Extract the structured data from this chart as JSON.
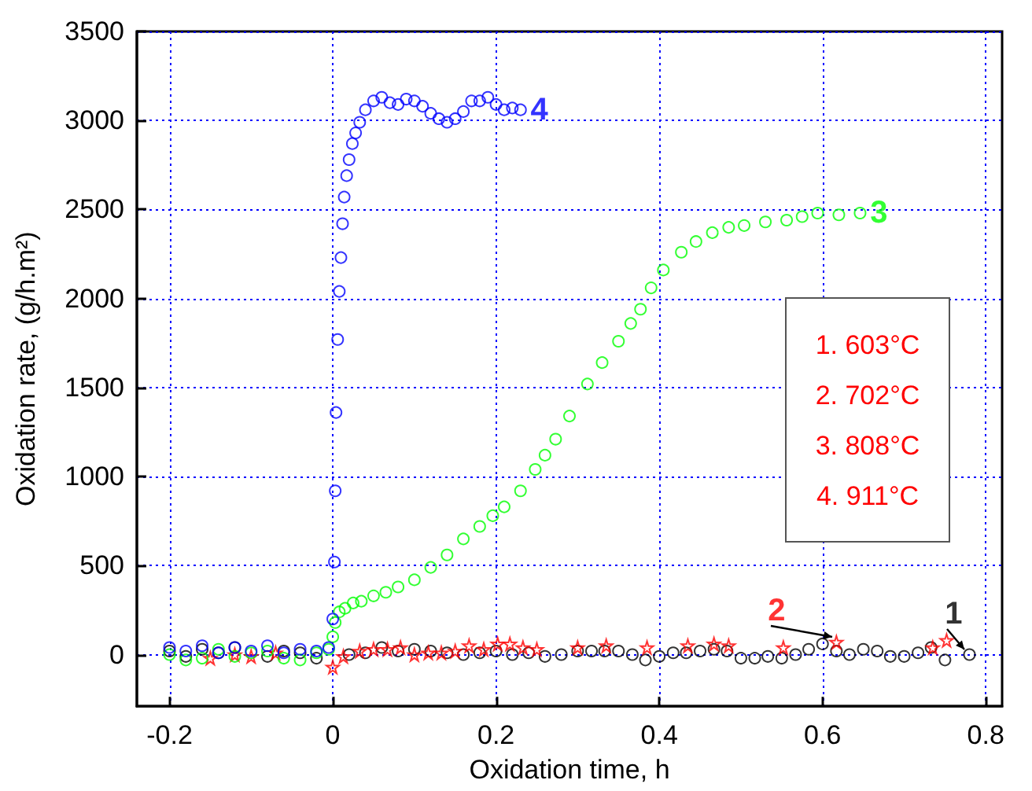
{
  "chart_data": {
    "type": "scatter",
    "xlabel": "Oxidation time, h",
    "ylabel": "Oxidation rate, (g/h.m²)",
    "xlim": [
      -0.24,
      0.82
    ],
    "xticks": [
      -0.2,
      0,
      0.2,
      0.4,
      0.6,
      0.8
    ],
    "ylim": [
      -290,
      3500
    ],
    "yticks": [
      0,
      500,
      1000,
      1500,
      2000,
      2500,
      3000,
      3500
    ],
    "grid": true,
    "legend": false,
    "annotations": [
      "1. 603°C",
      "2. 702°C",
      "3. 808°C",
      "4. 911°C"
    ],
    "series": [
      {
        "name": "1",
        "color": "#000000",
        "marker": "circle",
        "x": [
          -0.2,
          -0.18,
          -0.16,
          -0.14,
          -0.12,
          -0.1,
          -0.08,
          -0.06,
          -0.04,
          -0.02,
          0.02,
          0.04,
          0.06,
          0.08,
          0.1,
          0.12,
          0.14,
          0.16,
          0.18,
          0.2,
          0.22,
          0.24,
          0.26,
          0.28,
          0.3,
          0.317,
          0.333,
          0.35,
          0.367,
          0.383,
          0.4,
          0.417,
          0.433,
          0.45,
          0.467,
          0.483,
          0.5,
          0.517,
          0.533,
          0.55,
          0.567,
          0.583,
          0.6,
          0.617,
          0.633,
          0.65,
          0.667,
          0.683,
          0.7,
          0.717,
          0.733,
          0.75,
          0.78
        ],
        "values": [
          20,
          -10,
          30,
          10,
          40,
          null,
          -10,
          20,
          10,
          -20,
          0,
          10,
          40,
          20,
          30,
          20,
          10,
          0,
          10,
          20,
          0,
          10,
          -10,
          0,
          20,
          20,
          20,
          20,
          0,
          -30,
          -10,
          10,
          10,
          20,
          30,
          20,
          -20,
          -20,
          -10,
          -20,
          0,
          30,
          60,
          20,
          0,
          30,
          20,
          -10,
          -10,
          10,
          40,
          -30,
          0
        ]
      },
      {
        "name": "2",
        "color": "#ff0000",
        "marker": "star",
        "x": [
          -0.15,
          -0.12,
          -0.1,
          -0.07,
          0.0,
          0.013,
          0.033,
          0.05,
          0.067,
          0.083,
          0.1,
          0.117,
          0.133,
          0.15,
          0.167,
          0.185,
          0.202,
          0.217,
          0.233,
          0.25,
          0.3,
          0.335,
          0.385,
          0.435,
          0.467,
          0.485,
          0.552,
          0.735,
          0.752,
          0.617
        ],
        "values": [
          -20,
          0,
          -10,
          10,
          -70,
          -10,
          20,
          30,
          30,
          40,
          0,
          10,
          10,
          20,
          50,
          30,
          60,
          60,
          40,
          30,
          40,
          50,
          40,
          50,
          60,
          50,
          40,
          40,
          80,
          70
        ]
      },
      {
        "name": "3",
        "color": "#00ff00",
        "marker": "circle",
        "x": [
          -0.2,
          -0.18,
          -0.16,
          -0.14,
          -0.12,
          -0.1,
          -0.08,
          -0.06,
          -0.04,
          -0.02,
          -0.005,
          0.0,
          0.003,
          0.008,
          0.015,
          0.025,
          0.035,
          0.05,
          0.065,
          0.08,
          0.1,
          0.12,
          0.14,
          0.16,
          0.18,
          0.196,
          0.21,
          0.23,
          0.248,
          0.26,
          0.273,
          0.29,
          0.312,
          0.33,
          0.35,
          0.365,
          0.377,
          0.39,
          0.405,
          0.427,
          0.445,
          0.465,
          0.485,
          0.504,
          0.53,
          0.556,
          0.575,
          0.594,
          0.62,
          0.646
        ],
        "values": [
          0,
          -30,
          -20,
          30,
          -10,
          10,
          20,
          -20,
          -30,
          10,
          30,
          100,
          180,
          240,
          260,
          290,
          300,
          330,
          350,
          380,
          420,
          490,
          560,
          650,
          720,
          780,
          830,
          920,
          1040,
          1120,
          1210,
          1340,
          1520,
          1640,
          1760,
          1860,
          1940,
          2060,
          2160,
          2260,
          2320,
          2370,
          2400,
          2410,
          2430,
          2440,
          2460,
          2480,
          2470,
          2480
        ]
      },
      {
        "name": "4",
        "color": "#0000ff",
        "marker": "circle",
        "x": [
          -0.2,
          -0.18,
          -0.16,
          -0.14,
          -0.12,
          -0.1,
          -0.08,
          -0.06,
          -0.04,
          -0.02,
          -0.005,
          0.0,
          0.002,
          0.003,
          0.004,
          0.006,
          0.008,
          0.01,
          0.012,
          0.014,
          0.017,
          0.02,
          0.024,
          0.028,
          0.033,
          0.04,
          0.05,
          0.06,
          0.07,
          0.08,
          0.09,
          0.1,
          0.11,
          0.12,
          0.13,
          0.14,
          0.15,
          0.16,
          0.17,
          0.18,
          0.19,
          0.2,
          0.21,
          0.22,
          0.23
        ],
        "values": [
          40,
          20,
          50,
          10,
          40,
          20,
          50,
          10,
          30,
          20,
          40,
          200,
          520,
          920,
          1360,
          1770,
          2040,
          2230,
          2420,
          2570,
          2690,
          2780,
          2870,
          2930,
          2990,
          3060,
          3110,
          3130,
          3100,
          3090,
          3120,
          3110,
          3080,
          3040,
          3010,
          2990,
          3010,
          3050,
          3110,
          3110,
          3130,
          3090,
          3060,
          3070,
          3060
        ]
      }
    ]
  }
}
